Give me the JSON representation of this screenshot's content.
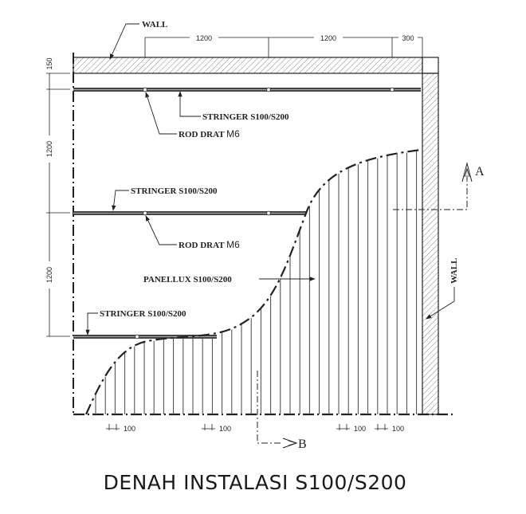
{
  "title": "DENAH INSTALASI S100/S200",
  "labels": {
    "wall_top": "WALL",
    "wall_right": "WALL",
    "stringer": "STRINGER S100/S200",
    "rod_drat": "ROD DRAT",
    "rod_size": "M6",
    "panellux": "PANELLUX S100/S200",
    "section_a": "A",
    "section_b": "B"
  },
  "dimensions": {
    "top": [
      "1200",
      "1200",
      "300"
    ],
    "left": [
      "150",
      "1200",
      "1200"
    ],
    "panel_spacing": [
      "100",
      "100",
      "100",
      "100"
    ]
  },
  "colors": {
    "line": "#222222",
    "hatch": "#555555"
  }
}
